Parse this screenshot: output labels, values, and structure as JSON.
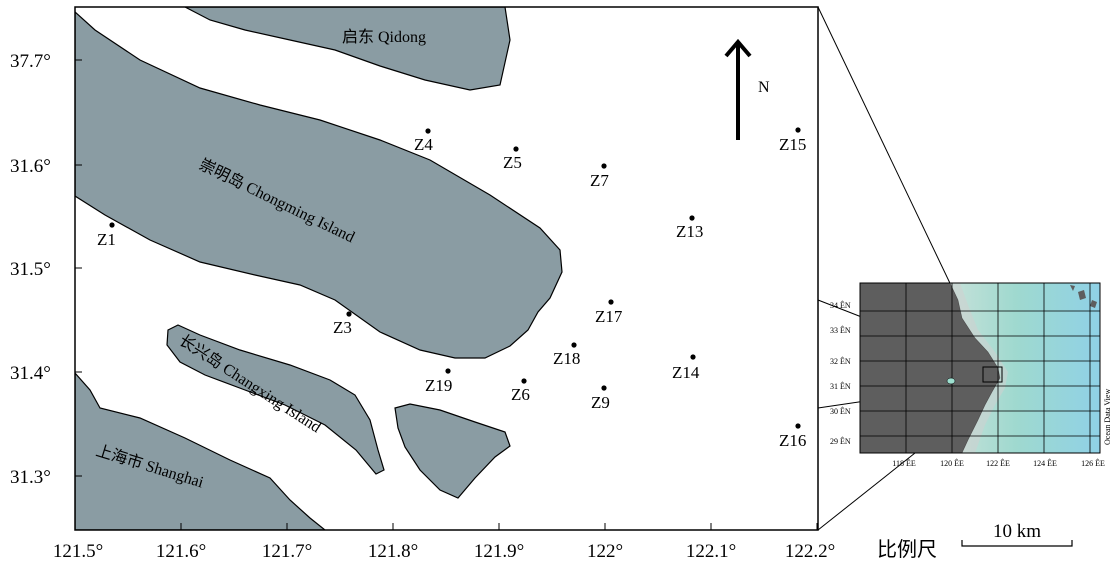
{
  "y_ticks": [
    "37.7°",
    "31.6°",
    "31.5°",
    "31.4°",
    "31.3°"
  ],
  "x_ticks": [
    "121.5°",
    "121.6°",
    "121.7°",
    "121.8°",
    "121.9°",
    "122°",
    "122.1°",
    "122.2°"
  ],
  "north_label": "N",
  "places": {
    "qidong": "启东  Qidong",
    "chongming": "崇明岛  Chongming Island",
    "changxing": "长兴岛  Changxing Island",
    "shanghai": "上海市  Shanghai"
  },
  "stations": [
    {
      "name": "Z1"
    },
    {
      "name": "Z3"
    },
    {
      "name": "Z4"
    },
    {
      "name": "Z5"
    },
    {
      "name": "Z7"
    },
    {
      "name": "Z13"
    },
    {
      "name": "Z15"
    },
    {
      "name": "Z17"
    },
    {
      "name": "Z18"
    },
    {
      "name": "Z19"
    },
    {
      "name": "Z6"
    },
    {
      "name": "Z9"
    },
    {
      "name": "Z14"
    },
    {
      "name": "Z16"
    }
  ],
  "inset": {
    "y_labels": [
      "34 ÊN",
      "33 ÊN",
      "32 ÊN",
      "31 ÊN",
      "30 ÊN",
      "29 ÊN"
    ],
    "x_labels": [
      "118 ÊE",
      "120 ÊE",
      "122 ÊE",
      "124 ÊE",
      "126 ÊE"
    ],
    "credit": "Ocean Data View"
  },
  "scale": {
    "label": "比例尺",
    "distance": "10 km"
  },
  "colors": {
    "land": "#8a9ca3",
    "water": "#ffffff"
  }
}
